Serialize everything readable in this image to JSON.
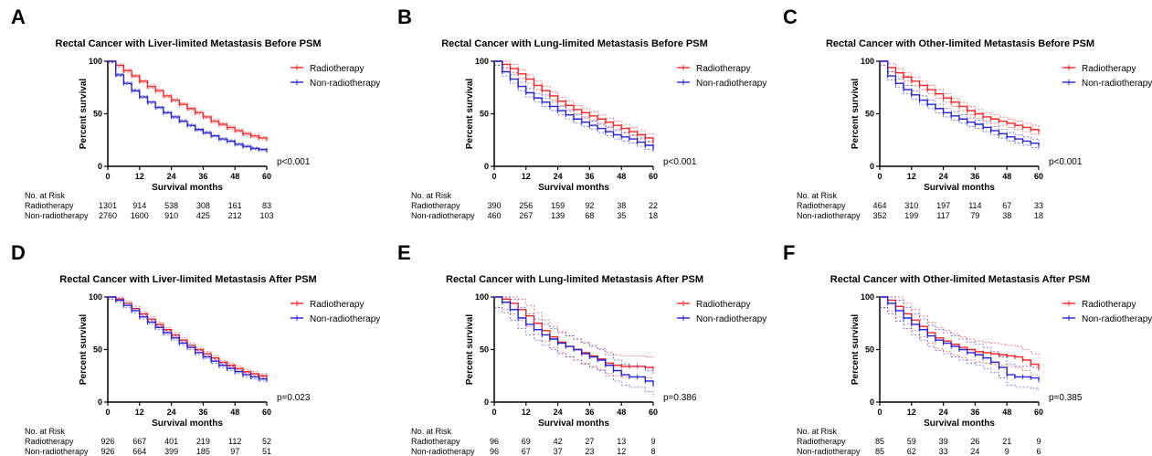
{
  "colors": {
    "radiotherapy": "#ff2020",
    "non_radiotherapy": "#2222e0",
    "axis": "#000000"
  },
  "chart_data": [
    {
      "type": "line",
      "letter": "A",
      "title": "Rectal Cancer with Liver-limited Metastasis Before PSM",
      "xlabel": "Survival months",
      "ylabel": "Percent survival",
      "xlim": [
        0,
        60
      ],
      "ylim": [
        0,
        100
      ],
      "xticks": [
        "0",
        "12",
        "24",
        "36",
        "48",
        "60"
      ],
      "yticks": [
        "0",
        "50",
        "100"
      ],
      "legend_position": "top-right",
      "pvalue": "p<0.001",
      "x": [
        0,
        3,
        6,
        9,
        12,
        15,
        18,
        21,
        24,
        27,
        30,
        33,
        36,
        39,
        42,
        45,
        48,
        51,
        54,
        57,
        60
      ],
      "series": [
        {
          "name": "Radiotherapy",
          "ci": 1.5,
          "values": [
            100,
            96,
            91,
            86,
            81,
            76,
            72,
            67,
            63,
            59,
            55,
            51,
            47,
            43,
            40,
            37,
            34,
            31,
            29,
            27,
            26
          ]
        },
        {
          "name": "Non-radiotherapy",
          "ci": 1.2,
          "values": [
            100,
            87,
            79,
            72,
            66,
            61,
            56,
            51,
            47,
            43,
            39,
            35,
            32,
            29,
            26,
            24,
            21,
            19,
            17,
            16,
            15
          ]
        }
      ],
      "risk_table": {
        "header": "No. at Risk",
        "rows": [
          {
            "label": "Radiotherapy",
            "counts": [
              "1301",
              "914",
              "538",
              "308",
              "161",
              "83"
            ]
          },
          {
            "label": "Non-radiotherapy",
            "counts": [
              "2760",
              "1600",
              "910",
              "425",
              "212",
              "103"
            ]
          }
        ]
      }
    },
    {
      "type": "line",
      "letter": "B",
      "title": "Rectal Cancer with Lung-limited Metastasis Before PSM",
      "xlabel": "Survival months",
      "ylabel": "Percent survival",
      "xlim": [
        0,
        60
      ],
      "ylim": [
        0,
        100
      ],
      "xticks": [
        "0",
        "12",
        "24",
        "36",
        "48",
        "60"
      ],
      "yticks": [
        "0",
        "50",
        "100"
      ],
      "legend_position": "top-right",
      "pvalue": "p<0.001",
      "x": [
        0,
        3,
        6,
        9,
        12,
        15,
        18,
        21,
        24,
        27,
        30,
        33,
        36,
        39,
        42,
        45,
        48,
        51,
        54,
        57,
        60
      ],
      "series": [
        {
          "name": "Radiotherapy",
          "ci": 4,
          "values": [
            100,
            97,
            93,
            88,
            83,
            77,
            72,
            67,
            62,
            58,
            54,
            51,
            48,
            45,
            42,
            39,
            36,
            33,
            30,
            27,
            24
          ]
        },
        {
          "name": "Non-radiotherapy",
          "ci": 4,
          "values": [
            100,
            90,
            83,
            76,
            70,
            65,
            61,
            57,
            53,
            49,
            45,
            42,
            39,
            36,
            33,
            30,
            28,
            26,
            23,
            20,
            17
          ]
        }
      ],
      "risk_table": {
        "header": "No. at Risk",
        "rows": [
          {
            "label": "Radiotherapy",
            "counts": [
              "390",
              "256",
              "159",
              "92",
              "38",
              "22"
            ]
          },
          {
            "label": "Non-radiotherapy",
            "counts": [
              "460",
              "267",
              "139",
              "68",
              "35",
              "18"
            ]
          }
        ]
      }
    },
    {
      "type": "line",
      "letter": "C",
      "title": "Rectal Cancer with Other-limited Metastasis Before PSM",
      "xlabel": "Survival months",
      "ylabel": "Percent survival",
      "xlim": [
        0,
        60
      ],
      "ylim": [
        0,
        100
      ],
      "xticks": [
        "0",
        "12",
        "24",
        "36",
        "48",
        "60"
      ],
      "yticks": [
        "0",
        "50",
        "100"
      ],
      "legend_position": "top-right",
      "pvalue": "p<0.001",
      "x": [
        0,
        3,
        6,
        9,
        12,
        15,
        18,
        21,
        24,
        27,
        30,
        33,
        36,
        39,
        42,
        45,
        48,
        51,
        54,
        57,
        60
      ],
      "series": [
        {
          "name": "Radiotherapy",
          "ci": 4,
          "values": [
            100,
            94,
            89,
            85,
            81,
            77,
            73,
            69,
            65,
            61,
            57,
            53,
            50,
            47,
            45,
            43,
            41,
            39,
            37,
            35,
            33
          ]
        },
        {
          "name": "Non-radiotherapy",
          "ci": 4,
          "values": [
            100,
            86,
            79,
            73,
            68,
            63,
            59,
            55,
            51,
            48,
            45,
            42,
            40,
            37,
            34,
            31,
            28,
            26,
            24,
            22,
            20
          ]
        }
      ],
      "risk_table": {
        "header": "No. at Risk",
        "rows": [
          {
            "label": "Radiotherapy",
            "counts": [
              "464",
              "310",
              "197",
              "114",
              "67",
              "33"
            ]
          },
          {
            "label": "Non-radiotherapy",
            "counts": [
              "352",
              "199",
              "117",
              "79",
              "38",
              "18"
            ]
          }
        ]
      }
    },
    {
      "type": "line",
      "letter": "D",
      "title": "Rectal Cancer with Liver-limited Metastasis After PSM",
      "xlabel": "Survival months",
      "ylabel": "Percent survival",
      "xlim": [
        0,
        60
      ],
      "ylim": [
        0,
        100
      ],
      "xticks": [
        "0",
        "12",
        "24",
        "36",
        "48",
        "60"
      ],
      "yticks": [
        "0",
        "50",
        "100"
      ],
      "legend_position": "top-right",
      "pvalue": "p=0.023",
      "x": [
        0,
        3,
        6,
        9,
        12,
        15,
        18,
        21,
        24,
        27,
        30,
        33,
        36,
        39,
        42,
        45,
        48,
        51,
        54,
        57,
        60
      ],
      "series": [
        {
          "name": "Radiotherapy",
          "ci": 2,
          "values": [
            100,
            98,
            94,
            89,
            84,
            79,
            74,
            69,
            64,
            59,
            54,
            50,
            46,
            42,
            38,
            35,
            32,
            29,
            27,
            25,
            24
          ]
        },
        {
          "name": "Non-radiotherapy",
          "ci": 2,
          "values": [
            100,
            97,
            92,
            87,
            81,
            76,
            71,
            66,
            61,
            56,
            52,
            47,
            43,
            39,
            35,
            32,
            29,
            26,
            24,
            22,
            21
          ]
        }
      ],
      "risk_table": {
        "header": "No. at Risk",
        "rows": [
          {
            "label": "Radiotherapy",
            "counts": [
              "926",
              "667",
              "401",
              "219",
              "112",
              "52"
            ]
          },
          {
            "label": "Non-radiotherapy",
            "counts": [
              "926",
              "664",
              "399",
              "185",
              "97",
              "51"
            ]
          }
        ]
      }
    },
    {
      "type": "line",
      "letter": "E",
      "title": "Rectal Cancer with Lung-limited Metastasis After PSM",
      "xlabel": "Survival months",
      "ylabel": "Percent survival",
      "xlim": [
        0,
        60
      ],
      "ylim": [
        0,
        100
      ],
      "xticks": [
        "0",
        "12",
        "24",
        "36",
        "48",
        "60"
      ],
      "yticks": [
        "0",
        "50",
        "100"
      ],
      "legend_position": "top-right",
      "pvalue": "p=0.386",
      "x": [
        0,
        3,
        6,
        9,
        12,
        15,
        18,
        21,
        24,
        27,
        30,
        33,
        36,
        39,
        42,
        45,
        48,
        51,
        54,
        57,
        60
      ],
      "series": [
        {
          "name": "Radiotherapy",
          "ci": 10,
          "values": [
            100,
            98,
            94,
            88,
            82,
            75,
            68,
            62,
            57,
            53,
            50,
            47,
            44,
            41,
            37,
            35,
            34,
            34,
            34,
            33,
            32
          ]
        },
        {
          "name": "Non-radiotherapy",
          "ci": 10,
          "values": [
            100,
            95,
            88,
            80,
            74,
            69,
            64,
            60,
            56,
            53,
            50,
            46,
            43,
            40,
            35,
            30,
            26,
            24,
            24,
            20,
            17
          ]
        }
      ],
      "risk_table": {
        "header": "No. at Risk",
        "rows": [
          {
            "label": "Radiotherapy",
            "counts": [
              "96",
              "69",
              "42",
              "27",
              "13",
              "9"
            ]
          },
          {
            "label": "Non-radiotherapy",
            "counts": [
              "96",
              "67",
              "37",
              "23",
              "12",
              "8"
            ]
          }
        ]
      }
    },
    {
      "type": "line",
      "letter": "F",
      "title": "Rectal Cancer with Other-limited Metastasis After PSM",
      "xlabel": "Survival months",
      "ylabel": "Percent survival",
      "xlim": [
        0,
        60
      ],
      "ylim": [
        0,
        100
      ],
      "xticks": [
        "0",
        "12",
        "24",
        "36",
        "48",
        "60"
      ],
      "yticks": [
        "0",
        "50",
        "100"
      ],
      "legend_position": "top-right",
      "pvalue": "p=0.385",
      "x": [
        0,
        3,
        6,
        9,
        12,
        15,
        18,
        21,
        24,
        27,
        30,
        33,
        36,
        39,
        42,
        45,
        48,
        51,
        54,
        57,
        60
      ],
      "series": [
        {
          "name": "Radiotherapy",
          "ci": 10,
          "values": [
            100,
            97,
            91,
            84,
            78,
            72,
            66,
            61,
            58,
            55,
            52,
            50,
            48,
            47,
            46,
            45,
            44,
            43,
            40,
            36,
            32
          ]
        },
        {
          "name": "Non-radiotherapy",
          "ci": 10,
          "values": [
            100,
            94,
            87,
            80,
            74,
            69,
            63,
            59,
            56,
            53,
            50,
            47,
            45,
            42,
            38,
            33,
            26,
            24,
            24,
            23,
            21
          ]
        }
      ],
      "risk_table": {
        "header": "No. at Risk",
        "rows": [
          {
            "label": "Radiotherapy",
            "counts": [
              "85",
              "59",
              "39",
              "26",
              "21",
              "9"
            ]
          },
          {
            "label": "Non-radiotherapy",
            "counts": [
              "85",
              "62",
              "33",
              "24",
              "9",
              "6"
            ]
          }
        ]
      }
    }
  ]
}
